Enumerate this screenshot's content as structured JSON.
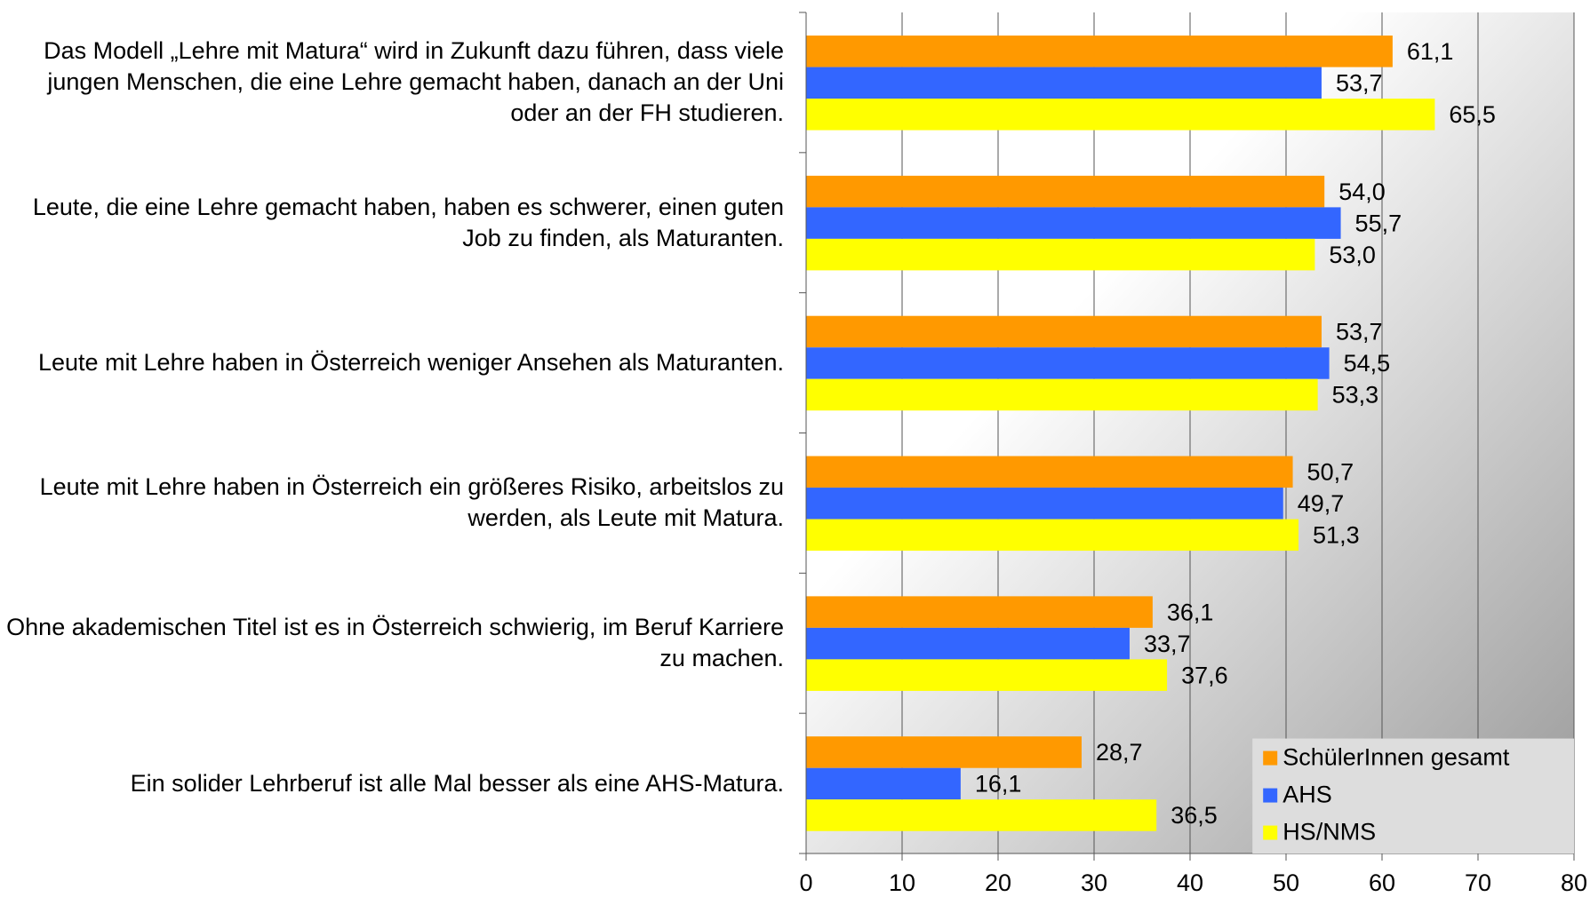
{
  "chart_data": {
    "type": "barh",
    "categories": [
      "Das Modell „Lehre mit Matura“ wird in Zukunft dazu führen, dass viele jungen Menschen, die eine Lehre gemacht haben, danach an der Uni oder an der FH studieren.",
      "Leute, die eine Lehre gemacht haben, haben es schwerer, einen guten Job zu finden, als Maturanten.",
      "Leute mit Lehre haben in Österreich weniger Ansehen als Maturanten.",
      "Leute mit Lehre haben in Österreich ein größeres Risiko, arbeitslos zu werden, als Leute mit Matura.",
      "Ohne akademischen Titel ist es in Österreich schwierig, im Beruf Karriere zu machen.",
      "Ein solider Lehrberuf ist alle Mal besser als eine AHS-Matura."
    ],
    "series": [
      {
        "name": "SchülerInnen gesamt",
        "color": "#ff9900",
        "values": [
          61.1,
          54.0,
          53.7,
          50.7,
          36.1,
          28.7
        ],
        "value_labels": [
          "61,1",
          "54,0",
          "53,7",
          "50,7",
          "36,1",
          "28,7"
        ]
      },
      {
        "name": "AHS",
        "color": "#3366ff",
        "values": [
          53.7,
          55.7,
          54.5,
          49.7,
          33.7,
          16.1
        ],
        "value_labels": [
          "53,7",
          "55,7",
          "54,5",
          "49,7",
          "33,7",
          "16,1"
        ]
      },
      {
        "name": "HS/NMS",
        "color": "#ffff00",
        "values": [
          65.5,
          53.0,
          53.3,
          51.3,
          37.6,
          36.5
        ],
        "value_labels": [
          "65,5",
          "53,0",
          "53,3",
          "51,3",
          "37,6",
          "36,5"
        ]
      }
    ],
    "xlim": [
      0,
      80
    ],
    "xticks": [
      0,
      10,
      20,
      30,
      40,
      50,
      60,
      70,
      80
    ],
    "grid": true,
    "legend": "lower right"
  }
}
